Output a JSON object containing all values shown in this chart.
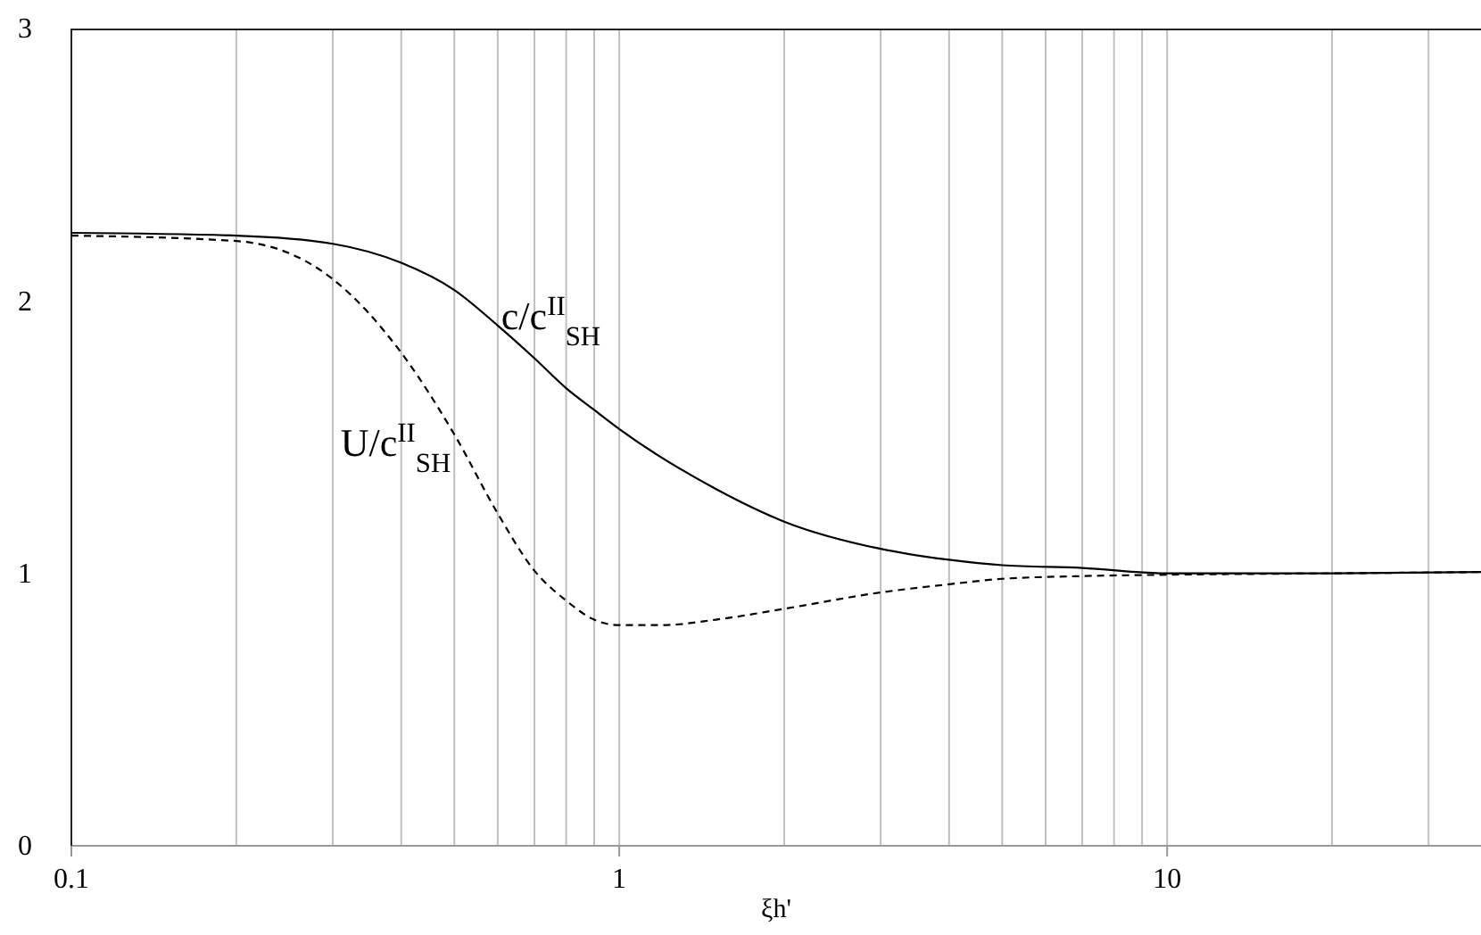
{
  "chart_data": {
    "type": "line",
    "xlabel": "ξh'",
    "log": "x",
    "xlim": [
      0.1,
      37.4
    ],
    "ylim": [
      0,
      3
    ],
    "xticks": [
      0.1,
      {
        "value": 0.2,
        "label": null
      },
      {
        "value": 0.3,
        "label": null
      },
      {
        "value": 0.4,
        "label": null
      },
      {
        "value": 0.5,
        "label": null
      },
      {
        "value": 0.6,
        "label": null
      },
      {
        "value": 0.7,
        "label": null
      },
      {
        "value": 0.8,
        "label": null
      },
      {
        "value": 0.9,
        "label": null
      },
      1,
      {
        "value": 2,
        "label": null
      },
      {
        "value": 3,
        "label": null
      },
      {
        "value": 4,
        "label": null
      },
      {
        "value": 5,
        "label": null
      },
      {
        "value": 6,
        "label": null
      },
      {
        "value": 7,
        "label": null
      },
      {
        "value": 8,
        "label": null
      },
      {
        "value": 9,
        "label": null
      },
      10,
      {
        "value": 20,
        "label": null
      },
      {
        "value": 30,
        "label": null
      }
    ],
    "yticks": [
      0,
      1,
      2,
      3
    ],
    "grid": "x",
    "marker": "none",
    "series": [
      {
        "name": "c/c$^{II}$$_{SH}$",
        "color": "#000000",
        "line_style": "solid",
        "x": [
          0.1,
          0.2,
          0.3,
          0.4,
          0.5,
          0.6,
          0.7,
          0.8,
          0.9,
          1,
          1.5,
          2,
          3,
          4,
          5,
          7,
          10,
          20,
          37.4
        ],
        "values": [
          2.25,
          2.24,
          2.21,
          2.14,
          2.04,
          1.91,
          1.79,
          1.68,
          1.6,
          1.53,
          1.31,
          1.19,
          1.09,
          1.05,
          1.03,
          1.02,
          1.0,
          1.0,
          1.005
        ]
      },
      {
        "name": "U/c$^{II}$$_{SH}$",
        "color": "#000000",
        "line_style": "dashed",
        "x": [
          0.1,
          0.2,
          0.3,
          0.4,
          0.5,
          0.6,
          0.7,
          0.8,
          0.9,
          1,
          1.2,
          1.5,
          2,
          3,
          4,
          5,
          7,
          10,
          20,
          37.4
        ],
        "values": [
          2.24,
          2.22,
          2.08,
          1.81,
          1.51,
          1.22,
          1.01,
          0.9,
          0.83,
          0.81,
          0.81,
          0.83,
          0.87,
          0.93,
          0.96,
          0.98,
          0.99,
          0.995,
          1.0,
          1.005
        ]
      }
    ]
  }
}
